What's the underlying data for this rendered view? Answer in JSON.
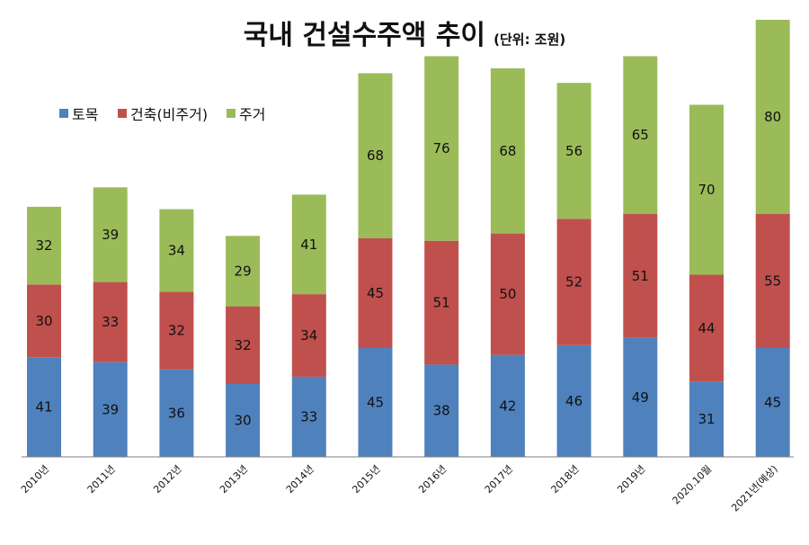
{
  "title": {
    "main": "국내 건설수주액 추이",
    "unit": "(단위: 조원)"
  },
  "colors": {
    "series": [
      "#4F81BD",
      "#C0504D",
      "#9BBB59"
    ]
  },
  "chart_data": {
    "type": "bar",
    "stacked": true,
    "categories": [
      "2010년",
      "2011년",
      "2012년",
      "2013년",
      "2014년",
      "2015년",
      "2016년",
      "2017년",
      "2018년",
      "2019년",
      "2020.10월",
      "2021년(예상)"
    ],
    "series": [
      {
        "name": "토목",
        "values": [
          41,
          39,
          36,
          30,
          33,
          45,
          38,
          42,
          46,
          49,
          31,
          45
        ]
      },
      {
        "name": "건축(비주거)",
        "values": [
          30,
          33,
          32,
          32,
          34,
          45,
          51,
          50,
          52,
          51,
          44,
          55
        ]
      },
      {
        "name": "주거",
        "values": [
          32,
          39,
          34,
          29,
          41,
          68,
          76,
          68,
          56,
          65,
          70,
          80
        ]
      }
    ],
    "ylim": [
      0,
      180
    ],
    "grid": false,
    "legend": "top-left",
    "data_labels": true
  }
}
